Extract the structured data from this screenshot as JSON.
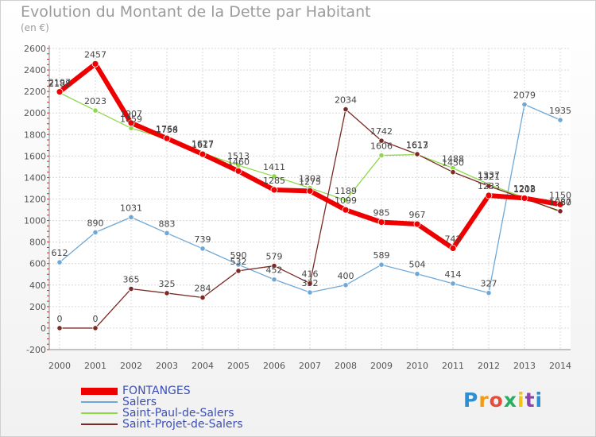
{
  "title": "Evolution du Montant de la Dette par Habitant",
  "subtitle": "(en €)",
  "logo": {
    "text": "Proxiti",
    "colors": [
      "#2b8fd6",
      "#f39c12",
      "#e74c3c",
      "#27ae60",
      "#f1c40f",
      "#8e44ad",
      "#2b8fd6"
    ]
  },
  "chart_data": {
    "type": "line",
    "x": [
      "2000",
      "2001",
      "2002",
      "2003",
      "2004",
      "2005",
      "2006",
      "2007",
      "2008",
      "2009",
      "2010",
      "2011",
      "2012",
      "2013",
      "2014"
    ],
    "ylim": [
      -200,
      2600
    ],
    "yticks": [
      -200,
      0,
      200,
      400,
      600,
      800,
      1000,
      1200,
      1400,
      1600,
      1800,
      2000,
      2200,
      2400,
      2600
    ],
    "grid": true,
    "legend_position": "bottom-left",
    "series": [
      {
        "name": "Salers",
        "color": "#6fa8d6",
        "width": 1.3,
        "values": [
          612,
          890,
          1031,
          883,
          739,
          590,
          452,
          332,
          400,
          589,
          504,
          414,
          327,
          2079,
          1935
        ]
      },
      {
        "name": "Saint-Paul-de-Salers",
        "color": "#8ed94a",
        "width": 1.3,
        "values": [
          2188,
          2023,
          1859,
          1758,
          1627,
          1513,
          1411,
          1303,
          1189,
          1606,
          1613,
          1488,
          1337,
          1212,
          1080
        ]
      },
      {
        "name": "Saint-Projet-de-Salers",
        "color": "#7a2a24",
        "width": 1.3,
        "values": [
          0,
          0,
          365,
          325,
          284,
          532,
          579,
          416,
          2034,
          1742,
          1617,
          1450,
          1321,
          1203,
          1087
        ]
      },
      {
        "name": "FONTANGES",
        "color": "#ee0000",
        "width": 6,
        "values": [
          2197,
          2457,
          1907,
          1764,
          1617,
          1460,
          1285,
          1275,
          1099,
          985,
          967,
          742,
          1233,
          1208,
          1150
        ]
      }
    ]
  }
}
